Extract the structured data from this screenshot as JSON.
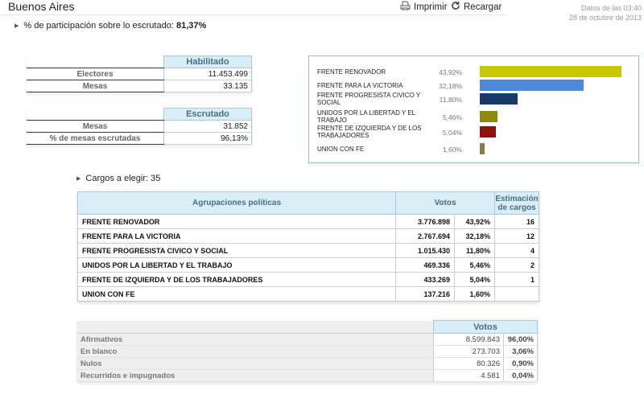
{
  "header": {
    "title": "Buenos Aires",
    "print_label": "Imprimir",
    "reload_label": "Recargar",
    "update_line1": "Datos de las 03:40",
    "update_line2": "28 de octubre de 2013"
  },
  "participation": {
    "label": "% de participación sobre lo escrutado:",
    "value": "81,37%"
  },
  "habilitado": {
    "header": "Habilitado",
    "rows": [
      {
        "label": "Electores",
        "value": "11.453.499"
      },
      {
        "label": "Mesas",
        "value": "33.135"
      }
    ]
  },
  "escrutado": {
    "header": "Escrutado",
    "rows": [
      {
        "label": "Mesas",
        "value": "31.852"
      },
      {
        "label": "% de mesas escrutadas",
        "value": "96,13%"
      }
    ]
  },
  "chart_data": {
    "type": "bar",
    "orientation": "horizontal",
    "categories": [
      "FRENTE RENOVADOR",
      "FRENTE PARA LA VICTORIA",
      "FRENTE PROGRESISTA CIVICO Y SOCIAL",
      "UNIDOS POR LA LIBERTAD Y EL TRABAJO",
      "FRENTE DE IZQUIERDA Y DE LOS TRABAJADORES",
      "UNION CON FE"
    ],
    "values": [
      43.92,
      32.18,
      11.8,
      5.46,
      5.04,
      1.6
    ],
    "value_labels": [
      "43,92%",
      "32,18%",
      "11,80%",
      "5,46%",
      "5,04%",
      "1,60%"
    ],
    "colors": [
      "#c9c800",
      "#4a8ad8",
      "#183a66",
      "#8c8a10",
      "#8e1010",
      "#8c7a55"
    ],
    "xlim": [
      0,
      43.92
    ]
  },
  "cargos": {
    "label": "Cargos a elegir: 35"
  },
  "results": {
    "headers": {
      "party": "Agrupaciones políticas",
      "votes": "Votos",
      "seats_line1": "Estimación",
      "seats_line2": "de cargos"
    },
    "rows": [
      {
        "party": "FRENTE RENOVADOR",
        "votes": "3.776.898",
        "pct": "43,92%",
        "seats": "16"
      },
      {
        "party": "FRENTE PARA LA VICTORIA",
        "votes": "2.767.694",
        "pct": "32,18%",
        "seats": "12"
      },
      {
        "party": "FRENTE PROGRESISTA CIVICO Y SOCIAL",
        "votes": "1.015.430",
        "pct": "11,80%",
        "seats": "4"
      },
      {
        "party": "UNIDOS POR LA LIBERTAD Y EL TRABAJO",
        "votes": "469.336",
        "pct": "5,46%",
        "seats": "2"
      },
      {
        "party": "FRENTE DE IZQUIERDA Y DE LOS TRABAJADORES",
        "votes": "433.269",
        "pct": "5,04%",
        "seats": "1"
      },
      {
        "party": "UNION CON FE",
        "votes": "137.216",
        "pct": "1,60%",
        "seats": ""
      }
    ]
  },
  "summary": {
    "header": "Votos",
    "rows": [
      {
        "label": "Afirmativos",
        "votes": "8.599.843",
        "pct": "96,00%"
      },
      {
        "label": "En blanco",
        "votes": "273.703",
        "pct": "3,06%"
      },
      {
        "label": "Nulos",
        "votes": "80.326",
        "pct": "0,90%"
      },
      {
        "label": "Recurridos e impugnados",
        "votes": "4.581",
        "pct": "0,04%"
      }
    ]
  }
}
